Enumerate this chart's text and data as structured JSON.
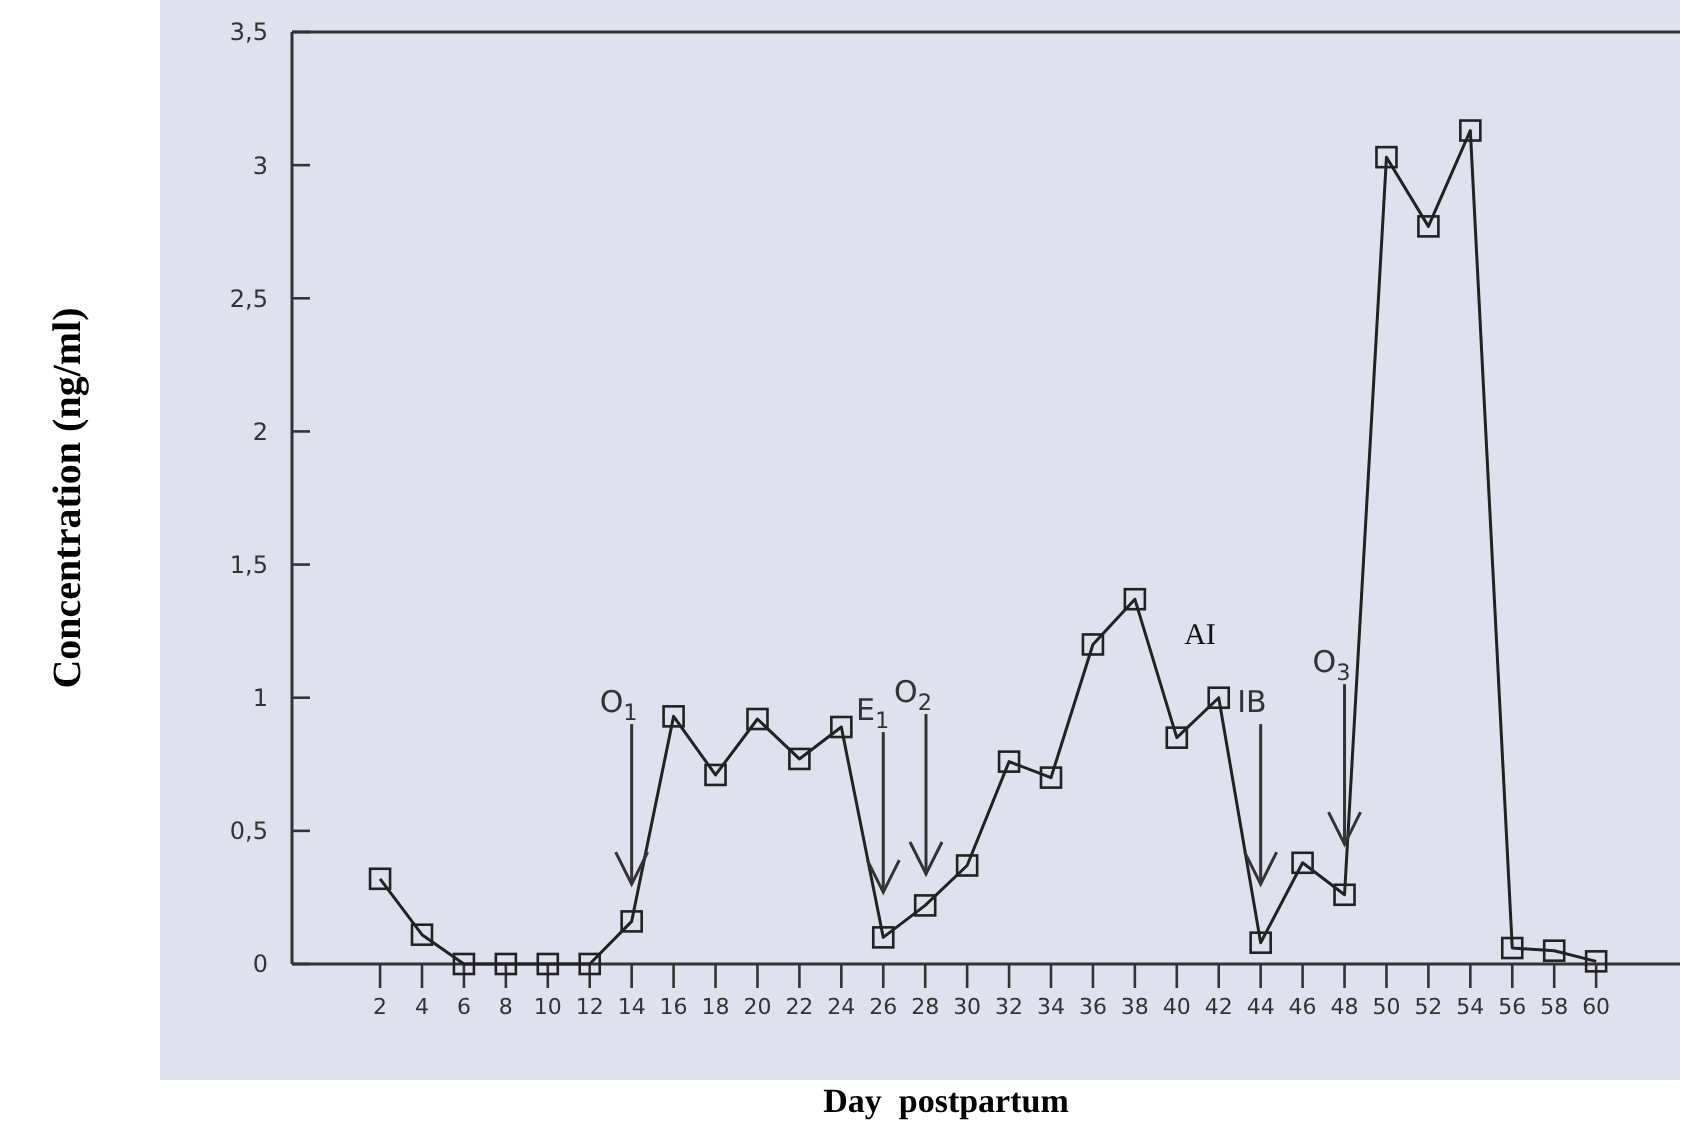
{
  "chart_data": {
    "type": "line",
    "xlabel": "Day  postpartum",
    "ylabel": "Concentration (ng/ml)",
    "x": [
      2,
      4,
      6,
      8,
      10,
      12,
      14,
      16,
      18,
      20,
      22,
      24,
      26,
      28,
      30,
      32,
      34,
      36,
      38,
      40,
      42,
      44,
      46,
      48,
      50,
      52,
      54,
      56,
      58,
      60
    ],
    "series": [
      {
        "color": "#222222",
        "values": [
          0.32,
          0.11,
          0,
          0,
          0,
          0,
          0.16,
          0.93,
          0.71,
          0.92,
          0.77,
          0.89,
          0.1,
          0.22,
          0.37,
          0.76,
          0.7,
          1.2,
          1.37,
          0.85,
          1.0,
          0.08,
          0.38,
          0.26,
          3.03,
          2.77,
          3.13,
          0.06,
          0.05,
          0.01
        ]
      }
    ],
    "marker": "square",
    "line_style": "solid",
    "grid": false,
    "xlim": [
      -2.2,
      64
    ],
    "xticks": [
      2,
      4,
      6,
      8,
      10,
      12,
      14,
      16,
      18,
      20,
      22,
      24,
      26,
      28,
      30,
      32,
      34,
      36,
      38,
      40,
      42,
      44,
      46,
      48,
      50,
      52,
      54,
      56,
      58,
      60
    ],
    "ylim": [
      0,
      3.5
    ],
    "yticks": [
      0,
      {
        "value": 0.5,
        "label": "0,5"
      },
      1,
      {
        "value": 1.5,
        "label": "1,5"
      },
      2,
      {
        "value": 2.5,
        "label": "2,5"
      },
      3,
      {
        "value": 3.5,
        "label": "3,5"
      }
    ],
    "annotations": [
      {
        "text": "O$_{1}$",
        "x": 14,
        "y": 0.3
      },
      {
        "text": "E$_{1}$",
        "x": 26,
        "y": 0.27
      },
      "O$_{2}$",
      "AI",
      {
        "text": "IB",
        "x": 44,
        "y": 0.3
      },
      {
        "text": "O$_{3}$",
        "x": 48,
        "y": 0.45
      }
    ]
  }
}
